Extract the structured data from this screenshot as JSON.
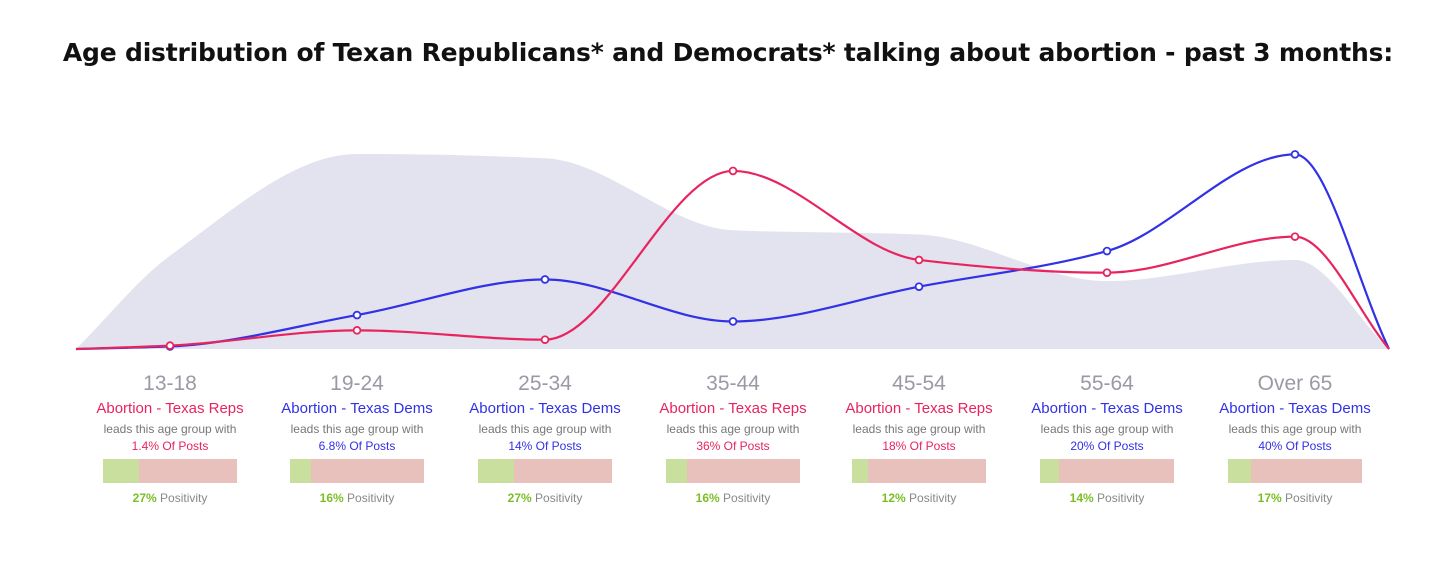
{
  "colors": {
    "reps": "#e8245f",
    "dems": "#3131e6",
    "area": "#e3e2ef",
    "positive": "#c9df9d",
    "negative": "#e8c1bd",
    "positive_text": "#7bbf27"
  },
  "chart_data": {
    "type": "line",
    "title": "Age distribution of Texan Republicans* and Democrats* talking about abortion - past 3 months:",
    "categories": [
      "13-18",
      "19-24",
      "25-34",
      "35-44",
      "45-54",
      "55-64",
      "Over 65"
    ],
    "series": [
      {
        "key": "reps",
        "values": [
          0.8,
          4.4,
          2.2,
          42.0,
          21.0,
          18.0,
          26.5
        ]
      },
      {
        "key": "dems",
        "values": [
          0.6,
          8.0,
          16.4,
          6.5,
          14.7,
          23.1,
          45.9
        ]
      },
      {
        "key": "background",
        "values": [
          22,
          46,
          45,
          28,
          27,
          16,
          21
        ]
      }
    ],
    "ylim": [
      0,
      50
    ],
    "grid": false
  },
  "groups": [
    {
      "age": "13-18",
      "leader": "Abortion - Texas Reps",
      "party": "reps",
      "sub": "leads this age group with",
      "share": "1.4% Of Posts",
      "positivity": 27,
      "positivity_label": "27%",
      "positivity_text": "Positivity"
    },
    {
      "age": "19-24",
      "leader": "Abortion - Texas Dems",
      "party": "dems",
      "sub": "leads this age group with",
      "share": "6.8% Of Posts",
      "positivity": 16,
      "positivity_label": "16%",
      "positivity_text": "Positivity"
    },
    {
      "age": "25-34",
      "leader": "Abortion - Texas Dems",
      "party": "dems",
      "sub": "leads this age group with",
      "share": "14% Of Posts",
      "positivity": 27,
      "positivity_label": "27%",
      "positivity_text": "Positivity"
    },
    {
      "age": "35-44",
      "leader": "Abortion - Texas Reps",
      "party": "reps",
      "sub": "leads this age group with",
      "share": "36% Of Posts",
      "positivity": 16,
      "positivity_label": "16%",
      "positivity_text": "Positivity"
    },
    {
      "age": "45-54",
      "leader": "Abortion - Texas Reps",
      "party": "reps",
      "sub": "leads this age group with",
      "share": "18% Of Posts",
      "positivity": 12,
      "positivity_label": "12%",
      "positivity_text": "Positivity"
    },
    {
      "age": "55-64",
      "leader": "Abortion - Texas Dems",
      "party": "dems",
      "sub": "leads this age group with",
      "share": "20% Of Posts",
      "positivity": 14,
      "positivity_label": "14%",
      "positivity_text": "Positivity"
    },
    {
      "age": "Over 65",
      "leader": "Abortion - Texas Dems",
      "party": "dems",
      "sub": "leads this age group with",
      "share": "40% Of Posts",
      "positivity": 17,
      "positivity_label": "17%",
      "positivity_text": "Positivity"
    }
  ]
}
